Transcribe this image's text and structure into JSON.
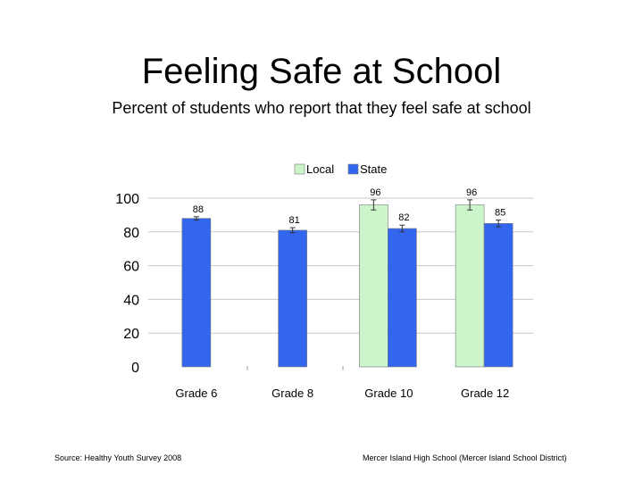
{
  "header": {
    "title": "Feeling Safe at School",
    "subtitle": "Percent of students who report that they feel safe at school"
  },
  "footer": {
    "source": "Source: Healthy Youth Survey 2008",
    "school": "Mercer Island High School (Mercer Island School District)"
  },
  "chart_data": {
    "type": "bar",
    "categories": [
      "Grade 6",
      "Grade 8",
      "Grade 10",
      "Grade 12"
    ],
    "series": [
      {
        "name": "Local",
        "values": [
          null,
          null,
          96,
          96
        ],
        "errors": [
          null,
          null,
          3,
          3
        ],
        "color": "#ccf5cc"
      },
      {
        "name": "State",
        "values": [
          88,
          81,
          82,
          85
        ],
        "errors": [
          1,
          1.5,
          2,
          2
        ],
        "color": "#3366ee"
      }
    ],
    "ylim": [
      0,
      100
    ],
    "yticks": [
      "0",
      "20",
      "40",
      "60",
      "80",
      "100"
    ],
    "grid": true,
    "legend": "top-center",
    "title": "Feeling Safe at School",
    "xlabel": "",
    "ylabel": ""
  }
}
